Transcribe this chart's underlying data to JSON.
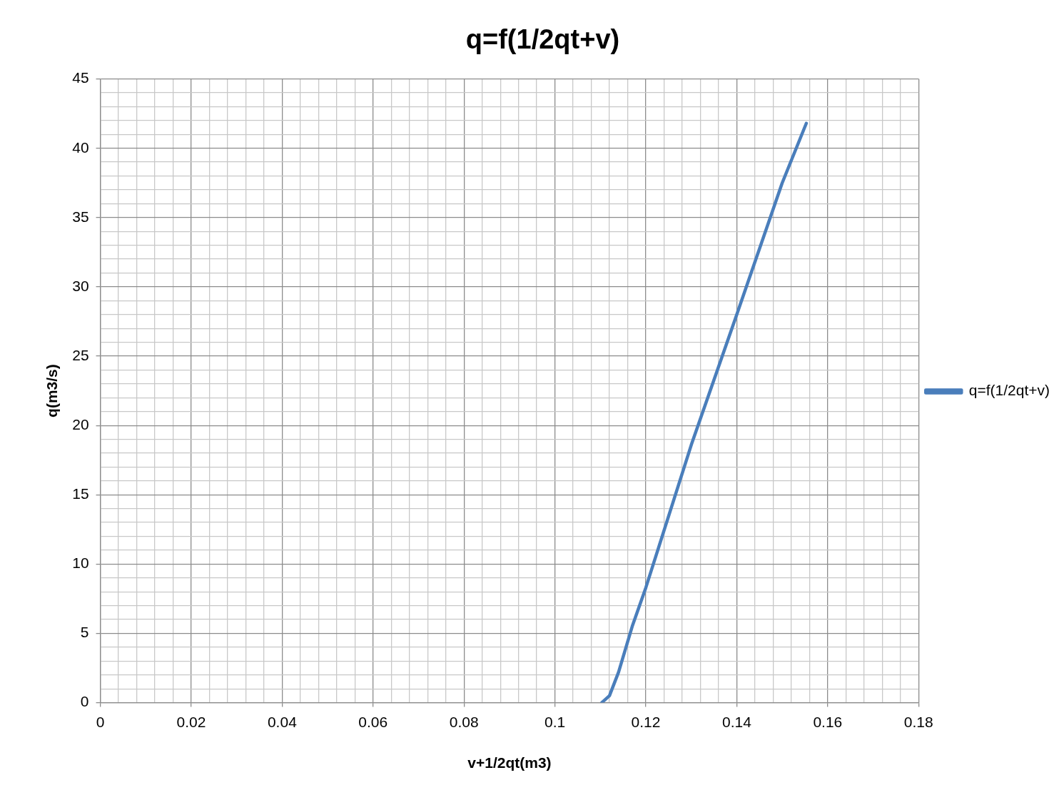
{
  "chart_data": {
    "type": "line",
    "title": "q=f(1/2qt+v)",
    "xlabel": "v+1/2qt(m3)",
    "ylabel": "q(m3/s)",
    "x": [
      0.1103,
      0.112,
      0.114,
      0.117,
      0.12,
      0.13,
      0.14,
      0.15,
      0.1553
    ],
    "series": [
      {
        "name": "q=f(1/2qt+v)",
        "color": "#4a7ebb",
        "values": [
          0,
          0.5,
          2.2,
          5.5,
          8.3,
          18.6,
          28.0,
          37.5,
          41.8
        ]
      }
    ],
    "xlim": [
      0,
      0.18
    ],
    "ylim": [
      0,
      45
    ],
    "xticks": [
      0,
      {
        "value": 0.004,
        "label": null
      },
      {
        "value": 0.008,
        "label": null
      },
      {
        "value": 0.012,
        "label": null
      },
      {
        "value": 0.016,
        "label": null
      },
      0.02,
      {
        "value": 0.024,
        "label": null
      },
      {
        "value": 0.028,
        "label": null
      },
      {
        "value": 0.032,
        "label": null
      },
      {
        "value": 0.036,
        "label": null
      },
      0.04,
      {
        "value": 0.044,
        "label": null
      },
      {
        "value": 0.048,
        "label": null
      },
      {
        "value": 0.052,
        "label": null
      },
      {
        "value": 0.056,
        "label": null
      },
      0.06,
      {
        "value": 0.064,
        "label": null
      },
      {
        "value": 0.068,
        "label": null
      },
      {
        "value": 0.072,
        "label": null
      },
      {
        "value": 0.076,
        "label": null
      },
      0.08,
      {
        "value": 0.084,
        "label": null
      },
      {
        "value": 0.088,
        "label": null
      },
      {
        "value": 0.092,
        "label": null
      },
      {
        "value": 0.096,
        "label": null
      },
      0.1,
      {
        "value": 0.104,
        "label": null
      },
      {
        "value": 0.108,
        "label": null
      },
      {
        "value": 0.112,
        "label": null
      },
      {
        "value": 0.116,
        "label": null
      },
      0.12,
      {
        "value": 0.124,
        "label": null
      },
      {
        "value": 0.128,
        "label": null
      },
      {
        "value": 0.132,
        "label": null
      },
      {
        "value": 0.136,
        "label": null
      },
      0.14,
      {
        "value": 0.144,
        "label": null
      },
      {
        "value": 0.148,
        "label": null
      },
      {
        "value": 0.152,
        "label": null
      },
      {
        "value": 0.156,
        "label": null
      },
      0.16,
      {
        "value": 0.164,
        "label": null
      },
      {
        "value": 0.168,
        "label": null
      },
      {
        "value": 0.172,
        "label": null
      },
      {
        "value": 0.176,
        "label": null
      },
      0.18
    ],
    "yticks": [
      0,
      {
        "value": 1,
        "label": null
      },
      {
        "value": 2,
        "label": null
      },
      {
        "value": 3,
        "label": null
      },
      {
        "value": 4,
        "label": null
      },
      5,
      {
        "value": 6,
        "label": null
      },
      {
        "value": 7,
        "label": null
      },
      {
        "value": 8,
        "label": null
      },
      {
        "value": 9,
        "label": null
      },
      10,
      {
        "value": 11,
        "label": null
      },
      {
        "value": 12,
        "label": null
      },
      {
        "value": 13,
        "label": null
      },
      {
        "value": 14,
        "label": null
      },
      15,
      {
        "value": 16,
        "label": null
      },
      {
        "value": 17,
        "label": null
      },
      {
        "value": 18,
        "label": null
      },
      {
        "value": 19,
        "label": null
      },
      20,
      {
        "value": 21,
        "label": null
      },
      {
        "value": 22,
        "label": null
      },
      {
        "value": 23,
        "label": null
      },
      {
        "value": 24,
        "label": null
      },
      25,
      {
        "value": 26,
        "label": null
      },
      {
        "value": 27,
        "label": null
      },
      {
        "value": 28,
        "label": null
      },
      {
        "value": 29,
        "label": null
      },
      30,
      {
        "value": 31,
        "label": null
      },
      {
        "value": 32,
        "label": null
      },
      {
        "value": 33,
        "label": null
      },
      {
        "value": 34,
        "label": null
      },
      35,
      {
        "value": 36,
        "label": null
      },
      {
        "value": 37,
        "label": null
      },
      {
        "value": 38,
        "label": null
      },
      {
        "value": 39,
        "label": null
      },
      40,
      {
        "value": 41,
        "label": null
      },
      {
        "value": 42,
        "label": null
      },
      {
        "value": 43,
        "label": null
      },
      {
        "value": 44,
        "label": null
      },
      45
    ],
    "grid": true,
    "legend": "right",
    "marker": "none",
    "line_style": "solid"
  }
}
